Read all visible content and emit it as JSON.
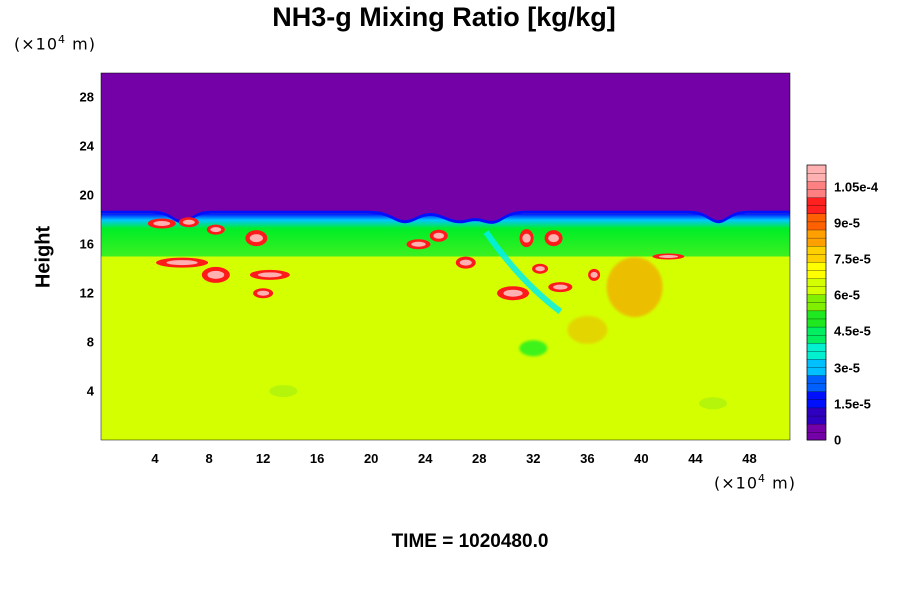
{
  "chart_data": {
    "type": "heatmap",
    "title": "NH3-g Mixing Ratio [kg/kg]",
    "xlabel": "",
    "ylabel": "Height",
    "x_unit_prefix": "(×10",
    "x_unit_exp": "4",
    "x_unit_suffix": " m)",
    "y_unit_prefix": "(×10",
    "y_unit_exp": "4",
    "y_unit_suffix": " m)",
    "xlim": [
      0,
      51
    ],
    "ylim": [
      0,
      30
    ],
    "x_ticks": [
      "4",
      "8",
      "12",
      "16",
      "20",
      "24",
      "28",
      "32",
      "36",
      "40",
      "44",
      "48"
    ],
    "x_tick_values": [
      4,
      8,
      12,
      16,
      20,
      24,
      28,
      32,
      36,
      40,
      44,
      48
    ],
    "y_ticks": [
      "4",
      "8",
      "12",
      "16",
      "20",
      "24",
      "28"
    ],
    "y_tick_values": [
      4,
      8,
      12,
      16,
      20,
      24,
      28
    ],
    "colorbar": {
      "range": [
        0,
        0.000114
      ],
      "tick_labels": [
        "0",
        "1.5e-5",
        "3e-5",
        "4.5e-5",
        "6e-5",
        "7.5e-5",
        "9e-5",
        "1.05e-4"
      ],
      "tick_values": [
        0,
        1.5e-05,
        3e-05,
        4.5e-05,
        6e-05,
        7.5e-05,
        9e-05,
        0.000105
      ]
    },
    "field_summary": {
      "top_layer_value": 0,
      "top_layer_bottom_height": 18.5,
      "mid_band_range": [
        15,
        18
      ],
      "mid_band_value": 6e-05,
      "lower_layer_value": 7.8e-05,
      "local_maxima_value": 0.000108
    },
    "annotation": "TIME = 1020480.0"
  },
  "colors": {
    "purple": "#7400a8",
    "blue": "#0010ff",
    "cyan": "#00f0f0",
    "green": "#00ee28",
    "yellow_green": "#d4ff00",
    "orange": "#ff8a00",
    "red": "#ff1a1a",
    "pink": "#ffb0b0"
  }
}
